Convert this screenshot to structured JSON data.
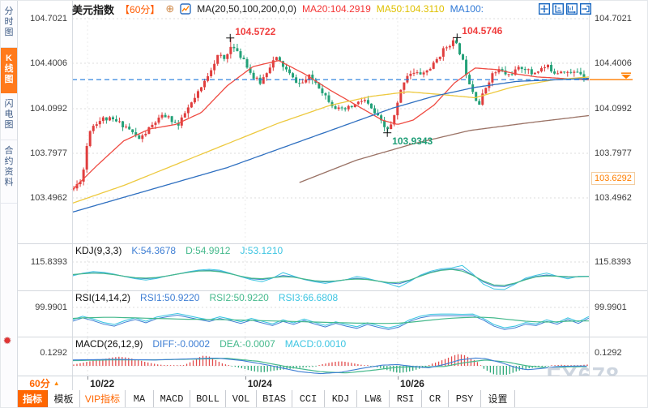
{
  "sidebar": {
    "items": [
      {
        "label": "分时图",
        "active": false
      },
      {
        "label": "K线图",
        "active": true
      },
      {
        "label": "闪电图",
        "active": false
      },
      {
        "label": "合约资料",
        "active": false
      }
    ]
  },
  "header": {
    "symbol": "美元指数",
    "period": "【60分】",
    "ma_def": "MA(20,50,100,200,0,0)",
    "ma20_label": "MA20:104.2919",
    "ma50_label": "MA50:104.3110",
    "ma100_label": "MA100:"
  },
  "panels": {
    "kdj": {
      "title": "KDJ(9,3,3)",
      "k": "K:54.3678",
      "d": "D:54.9912",
      "j": "J:53.1210",
      "scale_label": "115.8393"
    },
    "rsi": {
      "title": "RSI(14,14,2)",
      "rsi1": "RSI1:50.9220",
      "rsi2": "RSI2:50.9220",
      "rsi3": "RSI3:66.6808",
      "scale_label": "99.9901"
    },
    "macd": {
      "title": "MACD(26,12,9)",
      "diff": "DIFF:-0.0002",
      "dea": "DEA:-0.0007",
      "macd": "MACD:0.0010",
      "scale_label": "0.1292"
    }
  },
  "price_marker": {
    "label": "103.6292",
    "value": 103.6292
  },
  "time_axis": {
    "period_label": "60分",
    "dates": [
      {
        "label": "10/22",
        "x": 0.03
      },
      {
        "label": "10/24",
        "x": 0.335
      },
      {
        "label": "10/26",
        "x": 0.63
      }
    ]
  },
  "toolbar": {
    "items": [
      {
        "label": "指标",
        "style": "active"
      },
      {
        "label": "模板",
        "style": ""
      },
      {
        "label": "VIP指标",
        "style": "vip"
      },
      {
        "label": "MA",
        "style": "latin"
      },
      {
        "label": "MACD",
        "style": "latin"
      },
      {
        "label": "BOLL",
        "style": "latin"
      },
      {
        "label": "VOL",
        "style": "latin"
      },
      {
        "label": "BIAS",
        "style": "latin"
      },
      {
        "label": "CCI",
        "style": "latin"
      },
      {
        "label": "KDJ",
        "style": "latin"
      },
      {
        "label": "LW&",
        "style": "latin"
      },
      {
        "label": "RSI",
        "style": "latin"
      },
      {
        "label": "CR",
        "style": "latin"
      },
      {
        "label": "PSY",
        "style": "latin"
      },
      {
        "label": "设置",
        "style": ""
      }
    ]
  },
  "watermark": "FX678",
  "colors": {
    "up": "#e03e3e",
    "down": "#23a178",
    "ma20": "#ef4b42",
    "ma50": "#edc93f",
    "ma100": "#2e6fc0",
    "ma200": "#9a7265",
    "price_line": "#1f78dc",
    "accent_orange": "#ff7e00",
    "k": "#3f7fd4",
    "d": "#45b98c",
    "j": "#3dc5e2",
    "hist_up": "#e24b4b",
    "hist_down": "#2ea879",
    "grid": "#dcdcdc"
  },
  "chart_data": {
    "type": "candlestick",
    "symbol": "美元指数",
    "period": "60分",
    "y_axis": {
      "labels": [
        "104.7021",
        "104.4006",
        "104.0992",
        "103.7977",
        "103.4962"
      ],
      "values": [
        104.7021,
        104.4006,
        104.0992,
        103.7977,
        103.4962
      ]
    },
    "current_price": 104.2919,
    "ma_values": {
      "ma20": 104.2919,
      "ma50": 104.311,
      "ma100": null
    },
    "annotations": [
      {
        "text": "104.5722",
        "x": 0.306,
        "price": 104.5722,
        "kind": "high",
        "color": "#f03e3e"
      },
      {
        "text": "104.5746",
        "x": 0.745,
        "price": 104.5746,
        "kind": "high",
        "color": "#f03e3e"
      },
      {
        "text": "103.9343",
        "x": 0.61,
        "price": 103.9343,
        "kind": "low",
        "color": "#1f9e77"
      }
    ],
    "x_gridlines": [
      0.03,
      0.335,
      0.63
    ],
    "price_path": [
      [
        0.0,
        103.56
      ],
      [
        0.01,
        103.6
      ],
      [
        0.018,
        103.66
      ],
      [
        0.025,
        103.84
      ],
      [
        0.032,
        103.96
      ],
      [
        0.042,
        104.0
      ],
      [
        0.058,
        104.03
      ],
      [
        0.074,
        104.02
      ],
      [
        0.089,
        104.0
      ],
      [
        0.105,
        103.97
      ],
      [
        0.118,
        103.92
      ],
      [
        0.129,
        103.89
      ],
      [
        0.144,
        103.95
      ],
      [
        0.16,
        104.01
      ],
      [
        0.176,
        104.05
      ],
      [
        0.191,
        104.02
      ],
      [
        0.204,
        103.98
      ],
      [
        0.219,
        104.08
      ],
      [
        0.235,
        104.16
      ],
      [
        0.251,
        104.25
      ],
      [
        0.266,
        104.36
      ],
      [
        0.282,
        104.46
      ],
      [
        0.295,
        104.42
      ],
      [
        0.306,
        104.53
      ],
      [
        0.318,
        104.47
      ],
      [
        0.332,
        104.43
      ],
      [
        0.348,
        104.31
      ],
      [
        0.364,
        104.27
      ],
      [
        0.379,
        104.37
      ],
      [
        0.393,
        104.44
      ],
      [
        0.411,
        104.37
      ],
      [
        0.426,
        104.3
      ],
      [
        0.442,
        104.26
      ],
      [
        0.458,
        104.31
      ],
      [
        0.473,
        104.27
      ],
      [
        0.489,
        104.19
      ],
      [
        0.505,
        104.12
      ],
      [
        0.52,
        104.08
      ],
      [
        0.536,
        104.1
      ],
      [
        0.552,
        104.13
      ],
      [
        0.565,
        104.16
      ],
      [
        0.58,
        104.09
      ],
      [
        0.594,
        104.03
      ],
      [
        0.605,
        103.97
      ],
      [
        0.611,
        103.96
      ],
      [
        0.62,
        103.99
      ],
      [
        0.63,
        104.12
      ],
      [
        0.641,
        104.27
      ],
      [
        0.652,
        104.34
      ],
      [
        0.668,
        104.33
      ],
      [
        0.684,
        104.34
      ],
      [
        0.7,
        104.39
      ],
      [
        0.715,
        104.47
      ],
      [
        0.73,
        104.53
      ],
      [
        0.741,
        104.55
      ],
      [
        0.754,
        104.46
      ],
      [
        0.766,
        104.32
      ],
      [
        0.778,
        104.21
      ],
      [
        0.789,
        104.12
      ],
      [
        0.801,
        104.23
      ],
      [
        0.813,
        104.32
      ],
      [
        0.829,
        104.36
      ],
      [
        0.845,
        104.32
      ],
      [
        0.86,
        104.35
      ],
      [
        0.876,
        104.38
      ],
      [
        0.891,
        104.33
      ],
      [
        0.907,
        104.36
      ],
      [
        0.922,
        104.38
      ],
      [
        0.938,
        104.34
      ],
      [
        0.953,
        104.36
      ],
      [
        0.968,
        104.33
      ],
      [
        0.983,
        104.35
      ],
      [
        1.0,
        104.3
      ]
    ],
    "moving_averages": [
      {
        "name": "MA20",
        "color_key": "ma20",
        "points": [
          [
            0,
            103.55
          ],
          [
            0.05,
            103.72
          ],
          [
            0.1,
            103.88
          ],
          [
            0.15,
            103.96
          ],
          [
            0.2,
            103.99
          ],
          [
            0.25,
            104.07
          ],
          [
            0.3,
            104.25
          ],
          [
            0.35,
            104.38
          ],
          [
            0.4,
            104.42
          ],
          [
            0.45,
            104.33
          ],
          [
            0.5,
            104.22
          ],
          [
            0.55,
            104.12
          ],
          [
            0.6,
            104.02
          ],
          [
            0.63,
            103.99
          ],
          [
            0.66,
            104.02
          ],
          [
            0.7,
            104.12
          ],
          [
            0.74,
            104.27
          ],
          [
            0.78,
            104.37
          ],
          [
            0.82,
            104.36
          ],
          [
            0.86,
            104.33
          ],
          [
            0.9,
            104.31
          ],
          [
            0.95,
            104.3
          ],
          [
            1,
            104.29
          ]
        ]
      },
      {
        "name": "MA50",
        "color_key": "ma50",
        "points": [
          [
            0,
            103.46
          ],
          [
            0.1,
            103.58
          ],
          [
            0.2,
            103.72
          ],
          [
            0.3,
            103.86
          ],
          [
            0.4,
            104.0
          ],
          [
            0.5,
            104.12
          ],
          [
            0.58,
            104.18
          ],
          [
            0.65,
            104.21
          ],
          [
            0.72,
            104.19
          ],
          [
            0.78,
            104.17
          ],
          [
            0.85,
            104.24
          ],
          [
            0.93,
            104.29
          ],
          [
            1,
            104.31
          ]
        ]
      },
      {
        "name": "MA100",
        "color_key": "ma100",
        "points": [
          [
            0,
            103.4
          ],
          [
            0.1,
            103.5
          ],
          [
            0.2,
            103.6
          ],
          [
            0.3,
            103.7
          ],
          [
            0.38,
            103.8
          ],
          [
            0.46,
            103.9
          ],
          [
            0.54,
            104.0
          ],
          [
            0.62,
            104.1
          ],
          [
            0.7,
            104.18
          ],
          [
            0.78,
            104.24
          ],
          [
            0.86,
            104.28
          ],
          [
            1,
            104.3
          ]
        ]
      },
      {
        "name": "MA200",
        "color_key": "ma200",
        "points": [
          [
            0.44,
            103.6
          ],
          [
            0.55,
            103.75
          ],
          [
            0.66,
            103.86
          ],
          [
            0.77,
            103.95
          ],
          [
            0.88,
            104.0
          ],
          [
            1,
            104.05
          ]
        ]
      }
    ],
    "kdj": {
      "base": [
        60,
        66,
        70,
        68,
        62,
        54,
        47,
        44,
        48,
        56,
        64,
        72,
        78,
        80,
        76,
        66,
        54,
        44,
        40,
        48,
        58,
        52,
        42,
        34,
        30,
        34,
        40,
        46,
        42,
        34,
        26,
        22,
        36,
        56,
        72,
        82,
        86,
        84,
        60,
        30,
        12,
        10,
        24,
        42,
        54,
        60,
        55,
        50,
        53,
        54
      ],
      "k_last": 54.3678,
      "d_last": 54.9912,
      "j_last": 53.121
    },
    "rsi": {
      "fast": [
        55,
        68,
        58,
        45,
        38,
        52,
        62,
        50,
        65,
        72,
        78,
        70,
        62,
        55,
        66,
        58,
        48,
        60,
        50,
        40,
        55,
        44,
        58,
        46,
        35,
        48,
        38,
        30,
        44,
        34,
        26,
        35,
        55,
        68,
        75,
        76,
        76,
        75,
        76,
        60,
        38,
        26,
        32,
        45,
        40,
        55,
        45,
        62,
        48,
        67
      ],
      "slow": [
        60,
        62,
        63,
        64,
        64,
        63,
        62,
        61,
        60,
        59,
        58,
        57,
        57,
        56,
        56,
        55,
        54,
        53,
        52,
        51,
        50,
        49,
        48,
        47,
        46,
        45,
        44,
        43,
        43,
        42,
        42,
        43,
        46,
        50,
        54,
        58,
        61,
        63,
        64,
        64,
        62,
        58,
        54,
        50,
        48,
        47,
        48,
        50,
        51,
        51
      ],
      "rsi1_last": 50.922,
      "rsi2_last": 50.922,
      "rsi3_last": 66.6808
    },
    "macd": {
      "hist": [
        0.1,
        0.2,
        0.3,
        0.4,
        0.5,
        0.55,
        0.65,
        0.7,
        0.65,
        0.55,
        0.45,
        0.3,
        0.2,
        0.1,
        0.06,
        0.05,
        0.05,
        0.06,
        0.3,
        0.6,
        0.8,
        0.7,
        0.4,
        0.15,
        0.05,
        -0.1,
        -0.2,
        -0.35,
        -0.45,
        -0.5,
        -0.45,
        -0.35,
        -0.3,
        -0.25,
        -0.2,
        -0.15,
        -0.1,
        -0.08,
        0.1,
        0.2,
        0.3,
        0.35,
        0.3,
        0.2,
        0.1,
        0.03,
        -0.05,
        -0.15,
        -0.3,
        -0.45,
        -0.55,
        -0.5,
        -0.4,
        -0.25,
        -0.12,
        0.15,
        0.3,
        0.5,
        0.7,
        0.9,
        0.85,
        0.6,
        0.35,
        -0.2,
        -0.5,
        -0.75,
        -0.8,
        -0.65,
        -0.45,
        -0.3,
        -0.2,
        -0.12,
        -0.08,
        -0.05,
        0.05,
        0.08,
        0.05,
        0.04,
        0.06,
        0.1
      ],
      "diff": [
        [
          0,
          0.45
        ],
        [
          0.08,
          0.5
        ],
        [
          0.16,
          0.45
        ],
        [
          0.24,
          0.55
        ],
        [
          0.28,
          0.6
        ],
        [
          0.33,
          0.4
        ],
        [
          0.38,
          0.05
        ],
        [
          0.44,
          -0.45
        ],
        [
          0.48,
          -0.6
        ],
        [
          0.52,
          -0.5
        ],
        [
          0.56,
          -0.2
        ],
        [
          0.6,
          0.05
        ],
        [
          0.63,
          0.1
        ],
        [
          0.66,
          -0.05
        ],
        [
          0.69,
          -0.15
        ],
        [
          0.72,
          0.1
        ],
        [
          0.75,
          0.45
        ],
        [
          0.78,
          0.6
        ],
        [
          0.8,
          0.55
        ],
        [
          0.83,
          0.25
        ],
        [
          0.86,
          -0.15
        ],
        [
          0.88,
          -0.3
        ],
        [
          0.91,
          -0.2
        ],
        [
          0.94,
          -0.05
        ],
        [
          0.97,
          -0.02
        ],
        [
          1,
          -0.02
        ]
      ],
      "dea": [
        [
          0,
          0.4
        ],
        [
          0.08,
          0.46
        ],
        [
          0.16,
          0.46
        ],
        [
          0.24,
          0.52
        ],
        [
          0.3,
          0.58
        ],
        [
          0.36,
          0.35
        ],
        [
          0.42,
          -0.1
        ],
        [
          0.48,
          -0.45
        ],
        [
          0.53,
          -0.55
        ],
        [
          0.58,
          -0.35
        ],
        [
          0.63,
          -0.1
        ],
        [
          0.68,
          -0.08
        ],
        [
          0.72,
          -0.05
        ],
        [
          0.76,
          0.25
        ],
        [
          0.8,
          0.45
        ],
        [
          0.84,
          0.3
        ],
        [
          0.88,
          0.0
        ],
        [
          0.92,
          -0.15
        ],
        [
          0.96,
          -0.08
        ],
        [
          1,
          -0.05
        ]
      ],
      "diff_last": -0.0002,
      "dea_last": -0.0007,
      "macd_last": 0.001
    }
  }
}
